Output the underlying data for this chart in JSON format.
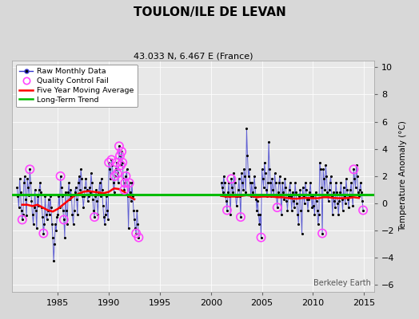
{
  "title": "TOULON/ILE DE LEVAN",
  "subtitle": "43.033 N, 6.467 E (France)",
  "ylabel": "Temperature Anomaly (°C)",
  "watermark": "Berkeley Earth",
  "xlim": [
    1980.5,
    2016.0
  ],
  "ylim": [
    -6.5,
    10.5
  ],
  "yticks": [
    -6,
    -4,
    -2,
    0,
    2,
    4,
    6,
    8,
    10
  ],
  "xticks": [
    1985,
    1990,
    1995,
    2000,
    2005,
    2010,
    2015
  ],
  "bg_color": "#d8d8d8",
  "plot_bg_color": "#e8e8e8",
  "raw_line_color": "#3333cc",
  "raw_marker_color": "#000000",
  "qc_fail_color": "#ff44ff",
  "moving_avg_color": "#ff0000",
  "trend_color": "#00bb00",
  "segments": [
    {
      "x": [
        1981.0,
        1981.083,
        1981.167,
        1981.25,
        1981.333,
        1981.417,
        1981.5,
        1981.583,
        1981.667,
        1981.75,
        1981.833,
        1981.917,
        1982.0,
        1982.083,
        1982.167,
        1982.25,
        1982.333,
        1982.417,
        1982.5,
        1982.583,
        1982.667,
        1982.75,
        1982.833,
        1982.917,
        1983.0,
        1983.083,
        1983.167,
        1983.25,
        1983.333,
        1983.417,
        1983.5,
        1983.583,
        1983.667,
        1983.75,
        1983.833,
        1983.917,
        1984.0,
        1984.083,
        1984.167,
        1984.25,
        1984.333,
        1984.417,
        1984.5,
        1984.583,
        1984.667,
        1984.75,
        1984.833,
        1984.917,
        1985.0,
        1985.083,
        1985.167,
        1985.25,
        1985.333,
        1985.417,
        1985.5,
        1985.583,
        1985.667,
        1985.75,
        1985.833,
        1985.917,
        1986.0,
        1986.083,
        1986.167,
        1986.25,
        1986.333,
        1986.417,
        1986.5,
        1986.583,
        1986.667,
        1986.75,
        1986.833,
        1986.917,
        1987.0,
        1987.083,
        1987.167,
        1987.25,
        1987.333,
        1987.417,
        1987.5,
        1987.583,
        1987.667,
        1987.75,
        1987.833,
        1987.917,
        1988.0,
        1988.083,
        1988.167,
        1988.25,
        1988.333,
        1988.417,
        1988.5,
        1988.583,
        1988.667,
        1988.75,
        1988.833,
        1988.917,
        1989.0,
        1989.083,
        1989.167,
        1989.25,
        1989.333,
        1989.417,
        1989.5,
        1989.583,
        1989.667,
        1989.75,
        1989.833,
        1989.917,
        1990.0,
        1990.083,
        1990.167,
        1990.25,
        1990.333,
        1990.417,
        1990.5,
        1990.583,
        1990.667,
        1990.75,
        1990.833,
        1990.917,
        1991.0,
        1991.083,
        1991.167,
        1991.25,
        1991.333,
        1991.417,
        1991.5,
        1991.583,
        1991.667,
        1991.75,
        1991.833,
        1991.917,
        1992.0,
        1992.083,
        1992.167,
        1992.25,
        1992.333,
        1992.417,
        1992.5,
        1992.583,
        1992.667,
        1992.75,
        1992.833,
        1992.917
      ],
      "y": [
        1.2,
        0.5,
        -0.3,
        1.8,
        0.8,
        -0.5,
        -1.2,
        -0.8,
        1.5,
        2.0,
        0.3,
        -0.9,
        1.8,
        1.2,
        0.6,
        2.5,
        1.5,
        0.2,
        -0.8,
        -1.5,
        -0.3,
        1.0,
        -0.5,
        -1.8,
        0.5,
        -0.2,
        1.0,
        1.5,
        0.8,
        -0.3,
        -1.0,
        -2.2,
        -1.5,
        0.5,
        -0.8,
        -1.2,
        -0.5,
        0.3,
        -0.8,
        0.5,
        -0.3,
        -1.5,
        -2.5,
        -4.2,
        -3.0,
        -1.5,
        -2.0,
        -1.0,
        -0.8,
        0.5,
        -0.3,
        2.0,
        1.2,
        0.5,
        -0.5,
        -1.2,
        -2.5,
        0.8,
        -0.5,
        -1.5,
        0.8,
        1.5,
        0.3,
        1.0,
        0.5,
        -0.8,
        -1.5,
        -0.5,
        0.8,
        1.2,
        0.3,
        -0.8,
        1.5,
        2.0,
        1.0,
        2.5,
        1.8,
        0.5,
        -0.3,
        0.5,
        1.2,
        1.8,
        1.0,
        0.2,
        0.5,
        1.2,
        0.8,
        2.2,
        1.5,
        0.3,
        -0.5,
        -1.0,
        0.5,
        1.0,
        0.2,
        -0.8,
        0.8,
        1.5,
        0.5,
        1.8,
        1.0,
        -0.2,
        -1.0,
        -1.5,
        -0.8,
        0.5,
        -0.5,
        -1.2,
        3.0,
        2.5,
        1.8,
        3.2,
        2.8,
        1.5,
        0.8,
        2.0,
        2.5,
        3.0,
        2.2,
        1.5,
        4.2,
        3.5,
        2.8,
        3.8,
        3.0,
        1.8,
        1.0,
        1.5,
        2.0,
        2.5,
        0.5,
        -1.8,
        1.5,
        0.8,
        0.2,
        1.5,
        0.5,
        -0.5,
        -1.2,
        -1.8,
        -2.2,
        -0.5,
        -1.5,
        -2.5
      ]
    },
    {
      "x": [
        2001.0,
        2001.083,
        2001.167,
        2001.25,
        2001.333,
        2001.417,
        2001.5,
        2001.583,
        2001.667,
        2001.75,
        2001.833,
        2001.917,
        2002.0,
        2002.083,
        2002.167,
        2002.25,
        2002.333,
        2002.417,
        2002.5,
        2002.583,
        2002.667,
        2002.75,
        2002.833,
        2002.917,
        2003.0,
        2003.083,
        2003.167,
        2003.25,
        2003.333,
        2003.417,
        2003.5,
        2003.583,
        2003.667,
        2003.75,
        2003.833,
        2003.917,
        2004.0,
        2004.083,
        2004.167,
        2004.25,
        2004.333,
        2004.417,
        2004.5,
        2004.583,
        2004.667,
        2004.75,
        2004.833,
        2004.917,
        2005.0,
        2005.083,
        2005.167,
        2005.25,
        2005.333,
        2005.417,
        2005.5,
        2005.583,
        2005.667,
        2005.75,
        2005.833,
        2005.917,
        2006.0,
        2006.083,
        2006.167,
        2006.25,
        2006.333,
        2006.417,
        2006.5,
        2006.583,
        2006.667,
        2006.75,
        2006.833,
        2006.917,
        2007.0,
        2007.083,
        2007.167,
        2007.25,
        2007.333,
        2007.417,
        2007.5,
        2007.583,
        2007.667,
        2007.75,
        2007.833,
        2007.917,
        2008.0,
        2008.083,
        2008.167,
        2008.25,
        2008.333,
        2008.417,
        2008.5,
        2008.583,
        2008.667,
        2008.75,
        2008.833,
        2008.917,
        2009.0,
        2009.083,
        2009.167,
        2009.25,
        2009.333,
        2009.417,
        2009.5,
        2009.583,
        2009.667,
        2009.75,
        2009.833,
        2009.917,
        2010.0,
        2010.083,
        2010.167,
        2010.25,
        2010.333,
        2010.417,
        2010.5,
        2010.583,
        2010.667,
        2010.75,
        2010.833,
        2010.917,
        2011.0,
        2011.083,
        2011.167,
        2011.25,
        2011.333,
        2011.417,
        2011.5,
        2011.583,
        2011.667,
        2011.75,
        2011.833,
        2011.917,
        2012.0,
        2012.083,
        2012.167,
        2012.25,
        2012.333,
        2012.417,
        2012.5,
        2012.583,
        2012.667,
        2012.75,
        2012.833,
        2012.917,
        2013.0,
        2013.083,
        2013.167,
        2013.25,
        2013.333,
        2013.417,
        2013.5,
        2013.583,
        2013.667,
        2013.75,
        2013.833,
        2013.917,
        2014.0,
        2014.083,
        2014.167,
        2014.25,
        2014.333,
        2014.417,
        2014.5,
        2014.583,
        2014.667,
        2014.75,
        2014.833,
        2014.917
      ],
      "y": [
        1.5,
        1.2,
        0.8,
        2.0,
        1.5,
        0.5,
        0.2,
        -0.5,
        0.8,
        1.5,
        0.5,
        -0.8,
        1.8,
        1.2,
        0.8,
        2.2,
        1.5,
        0.5,
        -0.2,
        0.5,
        1.0,
        1.8,
        0.5,
        -1.0,
        2.2,
        1.5,
        1.0,
        2.5,
        2.0,
        0.8,
        5.5,
        3.5,
        2.0,
        2.5,
        1.5,
        0.5,
        1.5,
        0.8,
        0.5,
        2.0,
        1.2,
        0.3,
        -0.5,
        0.2,
        -0.8,
        -1.5,
        -0.8,
        -2.5,
        2.5,
        1.8,
        1.2,
        3.0,
        2.2,
        1.0,
        0.5,
        1.5,
        4.5,
        2.5,
        1.5,
        0.5,
        1.8,
        1.0,
        0.5,
        2.2,
        1.5,
        0.5,
        -0.3,
        0.8,
        1.5,
        2.0,
        0.5,
        -0.8,
        1.5,
        0.8,
        0.3,
        1.8,
        1.2,
        0.2,
        -0.5,
        0.5,
        1.0,
        1.5,
        0.5,
        -0.5,
        0.8,
        0.2,
        -0.3,
        1.5,
        0.8,
        0.0,
        -0.8,
        -1.5,
        0.5,
        1.0,
        -0.5,
        -2.2,
        1.2,
        0.5,
        0.0,
        1.5,
        1.0,
        0.3,
        -0.5,
        0.3,
        0.8,
        1.5,
        0.5,
        -0.3,
        0.5,
        -0.2,
        -0.8,
        0.8,
        0.2,
        -0.5,
        -1.5,
        -0.8,
        3.0,
        2.5,
        1.2,
        -2.2,
        2.5,
        1.8,
        1.0,
        2.8,
        2.0,
        0.8,
        0.2,
        1.0,
        1.5,
        2.0,
        0.5,
        -0.8,
        0.8,
        0.2,
        -0.3,
        1.5,
        0.8,
        0.0,
        -0.8,
        0.2,
        0.8,
        1.5,
        0.3,
        -0.5,
        1.2,
        0.5,
        0.0,
        1.8,
        1.0,
        0.3,
        -0.3,
        0.5,
        1.0,
        1.5,
        0.5,
        -0.2,
        2.5,
        1.8,
        1.2,
        2.8,
        2.0,
        0.8,
        0.5,
        1.0,
        1.5,
        0.8,
        0.2,
        -0.5
      ]
    }
  ],
  "qc_fail_points": [
    [
      1981.5,
      -1.2
    ],
    [
      1982.25,
      2.5
    ],
    [
      1983.583,
      -2.2
    ],
    [
      1985.25,
      2.0
    ],
    [
      1985.583,
      -1.2
    ],
    [
      1988.583,
      -1.0
    ],
    [
      1990.0,
      3.0
    ],
    [
      1990.25,
      3.2
    ],
    [
      1990.583,
      2.0
    ],
    [
      1990.75,
      3.0
    ],
    [
      1990.833,
      2.2
    ],
    [
      1991.0,
      4.2
    ],
    [
      1991.083,
      3.5
    ],
    [
      1991.167,
      2.8
    ],
    [
      1991.25,
      3.8
    ],
    [
      1991.333,
      3.0
    ],
    [
      1991.5,
      1.0
    ],
    [
      1991.583,
      1.5
    ],
    [
      1991.667,
      2.0
    ],
    [
      1992.0,
      1.5
    ],
    [
      1992.667,
      -2.2
    ],
    [
      1992.917,
      -2.5
    ],
    [
      2001.583,
      -0.5
    ],
    [
      2002.0,
      1.8
    ],
    [
      2002.917,
      -1.0
    ],
    [
      2004.917,
      -2.5
    ],
    [
      2006.5,
      -0.3
    ],
    [
      2010.917,
      -2.2
    ],
    [
      2014.0,
      2.5
    ],
    [
      2014.917,
      -0.5
    ]
  ],
  "moving_avg_seg1": {
    "x": [
      1981.5,
      1982.0,
      1982.5,
      1983.0,
      1983.5,
      1984.0,
      1984.5,
      1985.0,
      1985.5,
      1986.0,
      1986.5,
      1987.0,
      1987.5,
      1988.0,
      1988.5,
      1989.0,
      1989.5,
      1990.0,
      1990.5,
      1991.0,
      1991.5,
      1992.0,
      1992.5
    ],
    "y": [
      -0.1,
      -0.1,
      -0.2,
      -0.1,
      -0.3,
      -0.5,
      -0.6,
      -0.4,
      -0.1,
      0.2,
      0.5,
      0.7,
      0.85,
      0.9,
      0.85,
      0.8,
      0.75,
      0.85,
      1.1,
      1.05,
      0.85,
      0.5,
      0.3
    ]
  },
  "moving_avg_seg2": {
    "x": [
      2001.0,
      2001.5,
      2002.0,
      2002.5,
      2003.0,
      2003.5,
      2004.0,
      2004.5,
      2005.0,
      2005.5,
      2006.0,
      2006.5,
      2007.0,
      2007.5,
      2008.0,
      2008.5,
      2009.0,
      2009.5,
      2010.0,
      2010.5,
      2011.0,
      2011.5,
      2012.0,
      2012.5,
      2013.0,
      2013.5,
      2014.0,
      2014.5
    ],
    "y": [
      0.55,
      0.5,
      0.5,
      0.5,
      0.55,
      0.6,
      0.55,
      0.45,
      0.5,
      0.5,
      0.5,
      0.45,
      0.45,
      0.4,
      0.35,
      0.35,
      0.4,
      0.4,
      0.38,
      0.38,
      0.45,
      0.45,
      0.4,
      0.38,
      0.38,
      0.4,
      0.45,
      0.4
    ]
  },
  "trend_x": [
    1980.5,
    2016.0
  ],
  "trend_y": [
    0.62,
    0.62
  ]
}
